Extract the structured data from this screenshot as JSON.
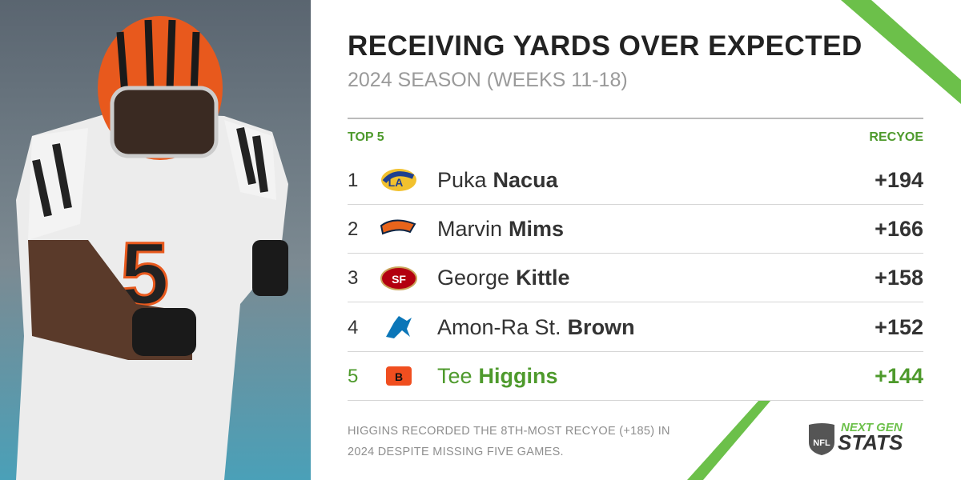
{
  "header": {
    "title": "RECEIVING YARDS OVER EXPECTED",
    "subtitle": "2024 SEASON (WEEKS 11-18)"
  },
  "table": {
    "label": "TOP 5",
    "metric": "RECYOE",
    "highlight": 4,
    "highlight_color": "#4e9a2c",
    "rows": [
      {
        "rank": "1",
        "first": "Puka",
        "last": "Nacua",
        "value": "+194"
      },
      {
        "rank": "2",
        "first": "Marvin",
        "last": "Mims",
        "value": "+166"
      },
      {
        "rank": "3",
        "first": "George",
        "last": "Kittle",
        "value": "+158"
      },
      {
        "rank": "4",
        "first": "Amon-Ra St.",
        "last": "Brown",
        "value": "+152"
      },
      {
        "rank": "5",
        "first": "Tee",
        "last": "Higgins",
        "value": "+144"
      }
    ]
  },
  "footnote": "HIGGINS RECORDED THE 8TH-MOST RECYOE (+185) IN 2024 DESPITE MISSING FIVE GAMES.",
  "brand": {
    "league": "NFL",
    "top": "NEXT GEN",
    "bottom": "STATS"
  }
}
